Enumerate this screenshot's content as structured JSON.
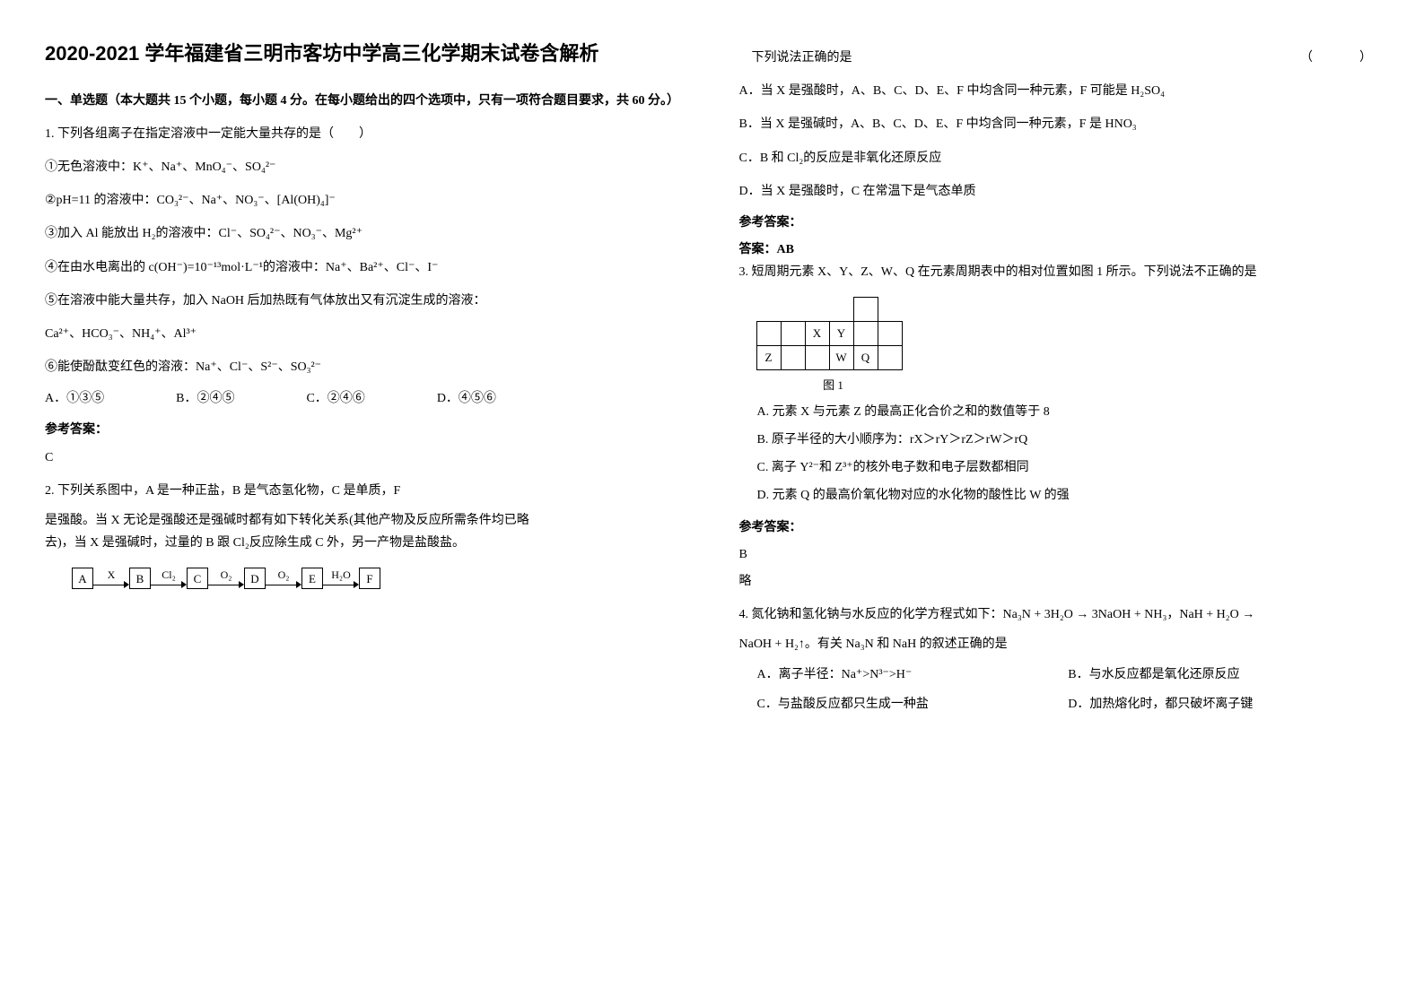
{
  "title": "2020-2021 学年福建省三明市客坊中学高三化学期末试卷含解析",
  "section1": {
    "header": "一、单选题（本大题共 15 个小题，每小题 4 分。在每小题给出的四个选项中，只有一项符合题目要求，共 60 分。）"
  },
  "q1": {
    "stem": "1. 下列各组离子在指定溶液中一定能大量共存的是（　　）",
    "line1": "①无色溶液中：K⁺、Na⁺、MnO₄⁻、SO₄²⁻",
    "line2": "②pH=11 的溶液中：CO₃²⁻、Na⁺、NO₃⁻、[Al(OH)₄]⁻",
    "line3": "③加入 Al 能放出 H₂的溶液中：Cl⁻、SO₄²⁻、NO₃⁻、Mg²⁺",
    "line4": "④在由水电离出的 c(OH⁻)=10⁻¹³mol·L⁻¹的溶液中：Na⁺、Ba²⁺、Cl⁻、I⁻",
    "line5": "⑤在溶液中能大量共存，加入 NaOH 后加热既有气体放出又有沉淀生成的溶液：",
    "line5b": "Ca²⁺、HCO₃⁻、NH₄⁺、Al³⁺",
    "line6": "⑥能使酚酞变红色的溶液：Na⁺、Cl⁻、S²⁻、SO₃²⁻",
    "optA": "A．①③⑤",
    "optB": "B．②④⑤",
    "optC": "C．②④⑥",
    "optD": "D．④⑤⑥",
    "answerLabel": "参考答案：",
    "answer": "C"
  },
  "q2": {
    "stem1": "2. 下列关系图中，A 是一种正盐，B 是气态氢化物，C 是单质，F",
    "stem2": "是强酸。当 X 无论是强酸还是强碱时都有如下转化关系(其他产物及反应所需条件均已略",
    "stem3": "去)，当 X 是强碱时，过量的 B 跟 Cl₂反应除生成 C 外，另一产物是盐酸盐。",
    "flow": {
      "nodes": [
        "A",
        "B",
        "C",
        "D",
        "E",
        "F"
      ],
      "edges": [
        "X",
        "Cl₂",
        "O₂",
        "O₂",
        "H₂O"
      ]
    },
    "line1": "下列说法正确的是",
    "blank": "（　　）",
    "optA": "A．当 X 是强酸时，A、B、C、D、E、F 中均含同一种元素，F 可能是 H₂SO₄",
    "optB": "B．当 X 是强碱时，A、B、C、D、E、F 中均含同一种元素，F 是 HNO₃",
    "optC": "C．B 和 Cl₂的反应是非氧化还原反应",
    "optD": "D．当 X 是强酸时，C 在常温下是气态单质",
    "answerLabel": "参考答案：",
    "answerPrefix": "答案：",
    "answer": "AB"
  },
  "q3": {
    "stem": "3. 短周期元素 X、Y、Z、W、Q 在元素周期表中的相对位置如图 1 所示。下列说法不正确的是",
    "table": {
      "row1": [
        "",
        "",
        "",
        "",
        "",
        ""
      ],
      "row2": [
        "",
        "",
        "X",
        "Y",
        "",
        ""
      ],
      "row3": [
        "Z",
        "",
        "",
        "W",
        "Q",
        ""
      ],
      "caption": "图 1"
    },
    "optA": "A. 元素 X 与元素 Z 的最高正化合价之和的数值等于 8",
    "optB": "B. 原子半径的大小顺序为：rX＞rY＞rZ＞rW＞rQ",
    "optC": "C. 离子 Y²⁻和 Z³⁺的核外电子数和电子层数都相同",
    "optD": "D. 元素 Q 的最高价氧化物对应的水化物的酸性比 W 的强",
    "answerLabel": "参考答案：",
    "answer": "B",
    "note": "略"
  },
  "q4": {
    "stem1": "4. 氮化钠和氢化钠与水反应的化学方程式如下：Na₃N + 3H₂O → 3NaOH + NH₃，NaH + H₂O →",
    "stem2": "NaOH + H₂↑。有关 Na₃N 和 NaH 的叙述正确的是",
    "optA": "A．离子半径：Na⁺>N³⁻>H⁻",
    "optB": "B．与水反应都是氧化还原反应",
    "optC": "C．与盐酸反应都只生成一种盐",
    "optD": "D．加热熔化时，都只破坏离子键"
  }
}
